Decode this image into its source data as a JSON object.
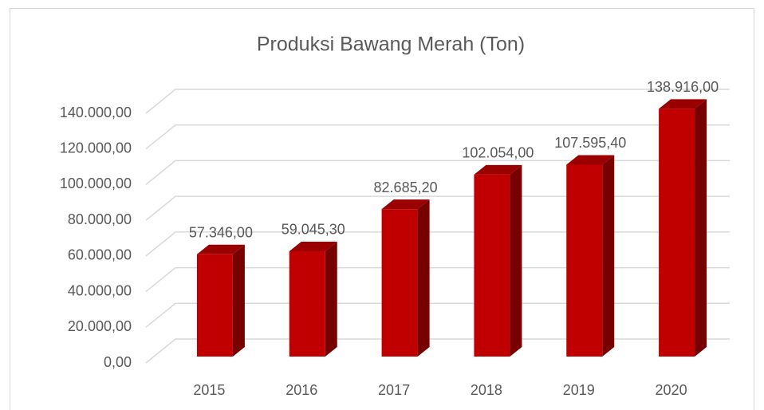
{
  "chart_data": {
    "type": "bar3d",
    "title": "Produksi Bawang Merah (Ton)",
    "categories": [
      "2015",
      "2016",
      "2017",
      "2018",
      "2019",
      "2020"
    ],
    "values": [
      57346,
      59045.3,
      82685.2,
      102054,
      107595.4,
      138916
    ],
    "value_labels": [
      "57.346,00",
      "59.045,30",
      "82.685,20",
      "102.054,00",
      "107.595,40",
      "138.916,00"
    ],
    "color": "#c00000",
    "ylim": [
      0,
      140000
    ],
    "yticks": [
      {
        "value": 0,
        "label": "0,00"
      },
      {
        "value": 20000,
        "label": "20.000,00"
      },
      {
        "value": 40000,
        "label": "40.000,00"
      },
      {
        "value": 60000,
        "label": "60.000,00"
      },
      {
        "value": 80000,
        "label": "80.000,00"
      },
      {
        "value": 100000,
        "label": "100.000,00"
      },
      {
        "value": 120000,
        "label": "120.000,00"
      },
      {
        "value": 140000,
        "label": "140.000,00"
      }
    ],
    "grid": true
  }
}
